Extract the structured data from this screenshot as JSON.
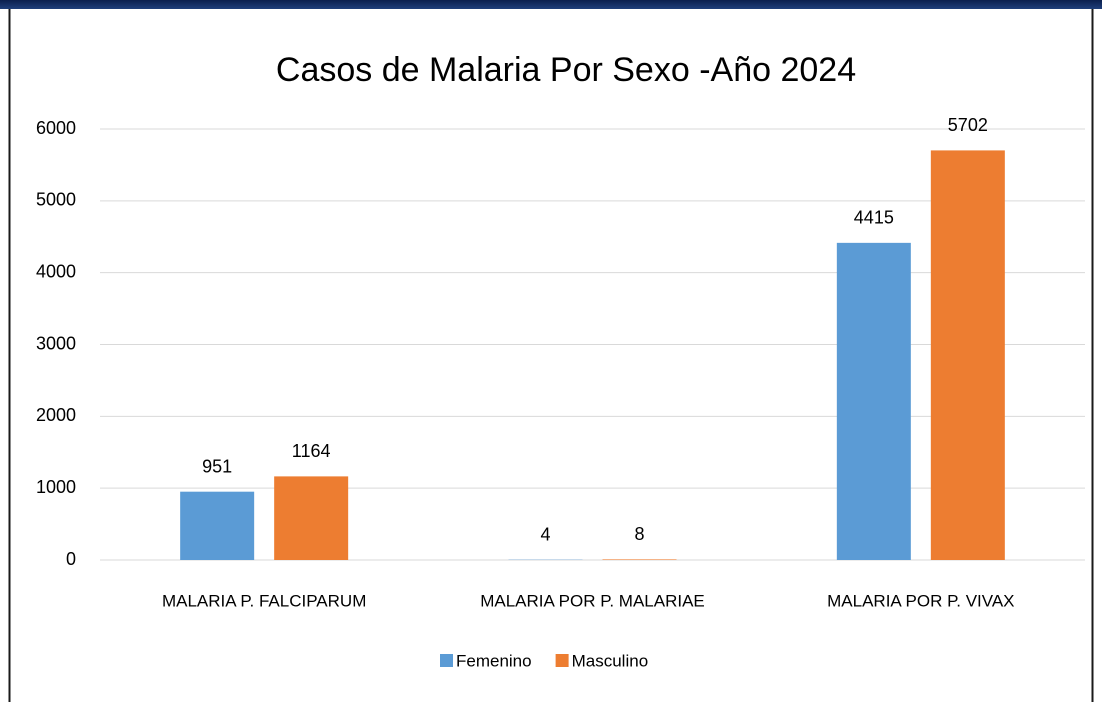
{
  "chart_data": {
    "type": "bar",
    "title": "Casos de Malaria Por Sexo -Año 2024",
    "categories": [
      "MALARIA P. FALCIPARUM",
      "MALARIA POR P. MALARIAE",
      "MALARIA POR P. VIVAX"
    ],
    "series": [
      {
        "name": "Femenino",
        "color": "#5b9bd5",
        "values": [
          951,
          4,
          4415
        ]
      },
      {
        "name": "Masculino",
        "color": "#ed7d31",
        "values": [
          1164,
          8,
          5702
        ]
      }
    ],
    "ylim": [
      0,
      6000
    ],
    "yticks": [
      0,
      1000,
      2000,
      3000,
      4000,
      5000,
      6000
    ],
    "grid": true,
    "legend": "bottom"
  }
}
